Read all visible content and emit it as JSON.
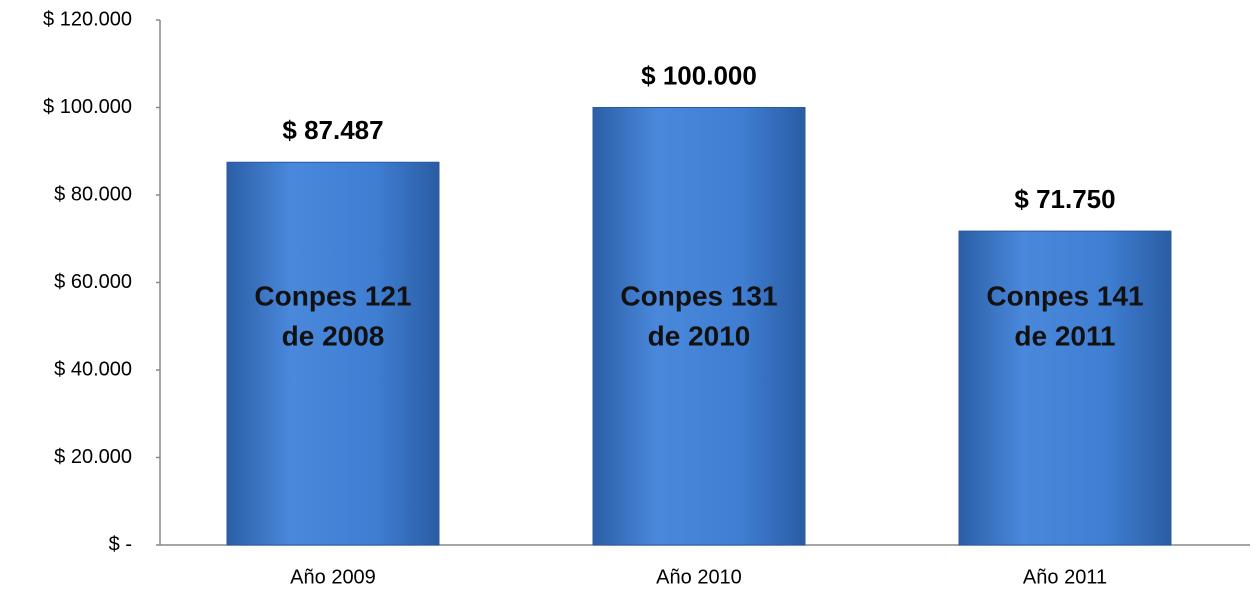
{
  "chart_data": {
    "type": "bar",
    "categories": [
      "Año 2009",
      "Año 2010",
      "Año 2011"
    ],
    "values": [
      87487,
      100000,
      71750
    ],
    "value_labels": [
      "$ 87.487",
      "$ 100.000",
      "$ 71.750"
    ],
    "bar_labels": [
      [
        "Conpes 121",
        "de 2008"
      ],
      [
        "Conpes 131",
        "de 2010"
      ],
      [
        "Conpes 141",
        "de 2011"
      ]
    ],
    "color": "#3a78cc",
    "ylim": [
      0,
      120000
    ],
    "yticks": [
      {
        "value": 0,
        "label": "$ -"
      },
      {
        "value": 20000,
        "label": "$ 20.000"
      },
      {
        "value": 40000,
        "label": "$ 40.000"
      },
      {
        "value": 60000,
        "label": "$ 60.000"
      },
      {
        "value": 80000,
        "label": "$ 80.000"
      },
      {
        "value": 100000,
        "label": "$ 100.000"
      },
      {
        "value": 120000,
        "label": "$ 120.000"
      }
    ],
    "grid": false
  }
}
